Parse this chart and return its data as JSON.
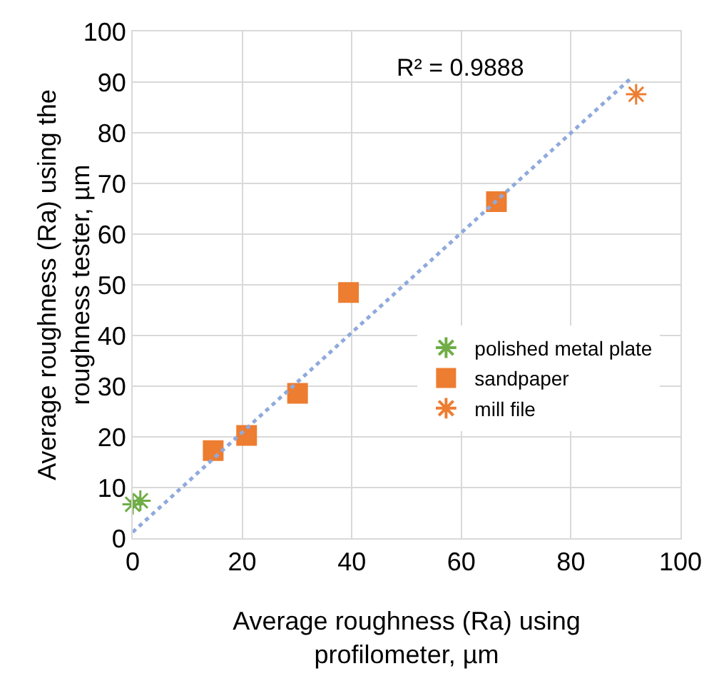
{
  "chart_data": {
    "type": "scatter",
    "xlabel": "Average roughness (Ra) using profilometer, µm",
    "ylabel": "Average roughness (Ra) using the roughness tester, µm",
    "xlim": [
      0,
      100
    ],
    "ylim": [
      0,
      100
    ],
    "xticks": [
      0,
      20,
      40,
      60,
      80,
      100
    ],
    "yticks": [
      0,
      10,
      20,
      30,
      40,
      50,
      60,
      70,
      80,
      90,
      100
    ],
    "grid": true,
    "legend": "right",
    "annotations": [
      "R² = 0.9888"
    ],
    "series": [
      {
        "name": "polished metal plate",
        "color": "#70ad47",
        "marker": "cross",
        "x": [
          0,
          1.4
        ],
        "values": [
          6.7,
          7.4
        ]
      },
      {
        "name": "sandpaper",
        "color": "#ed7d31",
        "marker": "square",
        "x": [
          14.7,
          20.8,
          30.1,
          39.4,
          66.4
        ],
        "values": [
          17.3,
          20.3,
          28.6,
          48.5,
          66.4
        ]
      },
      {
        "name": "mill file",
        "color": "#ed7d31",
        "marker": "cross",
        "x": [
          91.9
        ],
        "values": [
          87.6
        ]
      },
      {
        "type": "line",
        "color": "#8faadc",
        "line_style": "dotted",
        "marker": "none",
        "x": [
          0,
          91.1
        ],
        "values": [
          1.2,
          90.9
        ]
      }
    ]
  }
}
